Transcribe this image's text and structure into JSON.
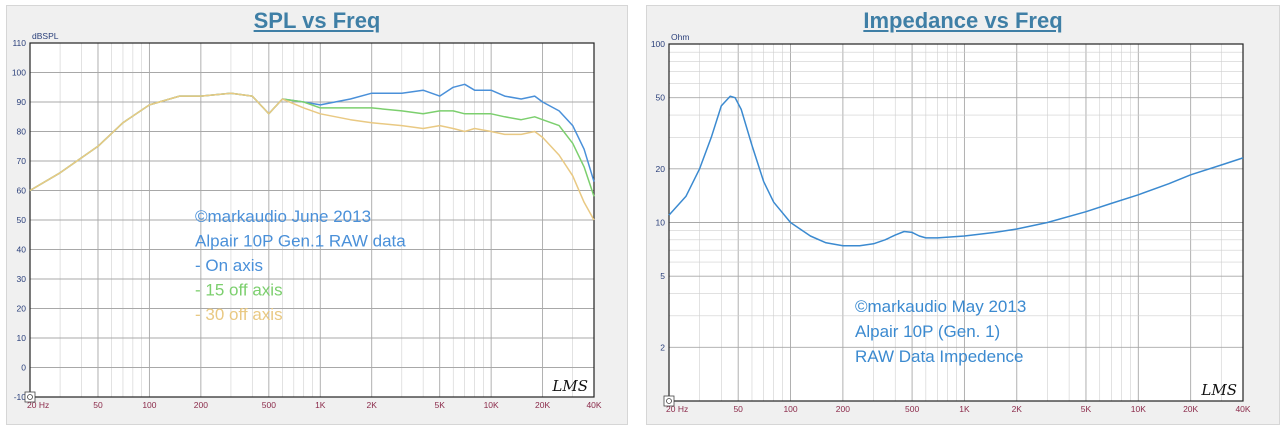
{
  "panels": [
    {
      "title": "SPL vs Freq",
      "chart_data": {
        "type": "line",
        "title": "SPL vs Freq",
        "ylabel": "dBSPL",
        "xlabel": "",
        "xscale": "log",
        "xlim": [
          20,
          40000
        ],
        "ylim": [
          -10,
          110
        ],
        "xticks": [
          "20 Hz",
          "50",
          "100",
          "200",
          "500",
          "1K",
          "2K",
          "5K",
          "10K",
          "20K",
          "40K"
        ],
        "yticks": [
          "110",
          "100",
          "90",
          "80",
          "70",
          "60",
          "50",
          "40",
          "30",
          "20",
          "10",
          "0",
          "-10"
        ],
        "grid": true,
        "series": [
          {
            "name": "On axis",
            "color": "#4a90d9",
            "x": [
              20,
              30,
              50,
              70,
              100,
              150,
              200,
              300,
              400,
              500,
              600,
              800,
              1000,
              1500,
              2000,
              3000,
              4000,
              5000,
              6000,
              7000,
              8000,
              10000,
              12000,
              15000,
              18000,
              20000,
              25000,
              30000,
              35000,
              40000
            ],
            "y": [
              60,
              66,
              75,
              83,
              89,
              92,
              92,
              93,
              92,
              86,
              91,
              90,
              89,
              91,
              93,
              93,
              94,
              92,
              95,
              96,
              94,
              94,
              92,
              91,
              92,
              90,
              87,
              82,
              74,
              63
            ]
          },
          {
            "name": "15 off axis",
            "color": "#7ccf6e",
            "x": [
              20,
              30,
              50,
              70,
              100,
              150,
              200,
              300,
              400,
              500,
              600,
              800,
              1000,
              1500,
              2000,
              3000,
              4000,
              5000,
              6000,
              7000,
              8000,
              10000,
              12000,
              15000,
              18000,
              20000,
              25000,
              30000,
              35000,
              40000
            ],
            "y": [
              60,
              66,
              75,
              83,
              89,
              92,
              92,
              93,
              92,
              86,
              91,
              90,
              88,
              88,
              88,
              87,
              86,
              87,
              87,
              86,
              86,
              86,
              85,
              84,
              85,
              84,
              82,
              76,
              68,
              58
            ]
          },
          {
            "name": "30 off axis",
            "color": "#e9c983",
            "x": [
              20,
              30,
              50,
              70,
              100,
              150,
              200,
              300,
              400,
              500,
              600,
              800,
              1000,
              1500,
              2000,
              3000,
              4000,
              5000,
              6000,
              7000,
              8000,
              10000,
              12000,
              15000,
              18000,
              20000,
              25000,
              30000,
              35000,
              40000
            ],
            "y": [
              60,
              66,
              75,
              83,
              89,
              92,
              92,
              93,
              92,
              86,
              91,
              88,
              86,
              84,
              83,
              82,
              81,
              82,
              81,
              80,
              81,
              80,
              79,
              79,
              80,
              78,
              72,
              65,
              56,
              50
            ]
          }
        ],
        "annotations": [
          {
            "text": "©markaudio June 2013",
            "color": "#4a90d9"
          },
          {
            "text": "Alpair 10P Gen.1 RAW data",
            "color": "#4a90d9"
          },
          {
            "text": " - On axis",
            "color": "#4a90d9"
          },
          {
            "text": " - 15 off axis",
            "color": "#7ccf6e"
          },
          {
            "text": " - 30 off axis",
            "color": "#e9c983"
          }
        ],
        "watermark": "LMS"
      }
    },
    {
      "title": "Impedance vs Freq",
      "chart_data": {
        "type": "line",
        "title": "Impedance vs Freq",
        "ylabel": "Ohm",
        "xlabel": "",
        "xscale": "log",
        "yscale": "log",
        "xlim": [
          20,
          40000
        ],
        "ylim": [
          1,
          100
        ],
        "xticks": [
          "20 Hz",
          "50",
          "100",
          "200",
          "500",
          "1K",
          "2K",
          "5K",
          "10K",
          "20K",
          "40K"
        ],
        "yticks": [
          "100",
          "50",
          "20",
          "10",
          "5",
          "2"
        ],
        "grid": true,
        "series": [
          {
            "name": "",
            "color": "#3b8ad0",
            "x": [
              20,
              25,
              30,
              35,
              40,
              45,
              48,
              52,
              60,
              70,
              80,
              100,
              130,
              160,
              200,
              250,
              300,
              350,
              400,
              450,
              500,
              550,
              600,
              700,
              1000,
              1500,
              2000,
              3000,
              5000,
              7000,
              10000,
              15000,
              20000,
              30000,
              40000
            ],
            "y": [
              11,
              14,
              20,
              30,
              45,
              51,
              50,
              43,
              27,
              17,
              13,
              10,
              8.4,
              7.7,
              7.4,
              7.4,
              7.6,
              8.0,
              8.5,
              8.9,
              8.8,
              8.4,
              8.2,
              8.2,
              8.4,
              8.8,
              9.2,
              10.0,
              11.5,
              12.8,
              14.3,
              16.5,
              18.5,
              21,
              23
            ]
          }
        ],
        "annotations": [
          {
            "text": "©markaudio May 2013",
            "color": "#3b8ad0"
          },
          {
            "text": "Alpair 10P (Gen. 1)",
            "color": "#3b8ad0"
          },
          {
            "text": "RAW Data Impedence",
            "color": "#3b8ad0"
          }
        ],
        "watermark": "LMS"
      }
    }
  ]
}
